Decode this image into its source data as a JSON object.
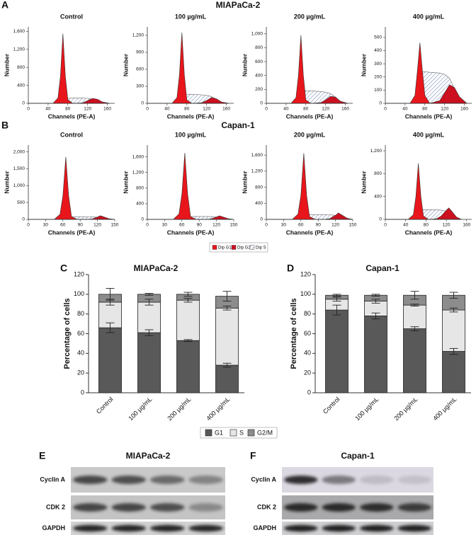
{
  "figure": {
    "rows": [
      {
        "label": "A",
        "title": "MIAPaCa-2"
      },
      {
        "label": "B",
        "title": "Capan-1"
      }
    ]
  },
  "chart_data": [
    {
      "type": "area",
      "title": "Control",
      "ylabel": "Number",
      "xlabel": "Channels (PE-A)",
      "x": [
        0,
        50,
        60,
        65,
        70,
        75,
        80,
        90,
        110,
        120,
        130,
        140,
        150,
        165
      ],
      "xlim": [
        0,
        175
      ],
      "xticks": [
        0,
        40,
        80,
        120,
        160
      ],
      "ylim": [
        0,
        1700
      ],
      "yticks": [
        0,
        400,
        800,
        {
          "value": 1200,
          "label": "1,200"
        },
        {
          "value": 1600,
          "label": "1,600"
        }
      ],
      "series": [
        {
          "name": "Dip G1",
          "color": "#e8161b",
          "values": [
            0,
            0,
            120,
            600,
            1550,
            600,
            80,
            0,
            0,
            0,
            0,
            0,
            0,
            0
          ]
        },
        {
          "name": "Dip G2",
          "color": "#cc1020",
          "values": [
            0,
            0,
            0,
            0,
            0,
            0,
            0,
            0,
            10,
            60,
            110,
            90,
            30,
            0
          ]
        },
        {
          "name": "Dip S",
          "color": "#7d8fb8",
          "values": [
            0,
            0,
            20,
            60,
            90,
            100,
            110,
            120,
            120,
            110,
            90,
            50,
            10,
            0
          ]
        }
      ]
    },
    {
      "type": "area",
      "title": "100 µg/mL",
      "ylabel": "Number",
      "xlabel": "Channels (PE-A)",
      "x": [
        0,
        50,
        60,
        65,
        70,
        75,
        80,
        90,
        110,
        120,
        130,
        140,
        150,
        165
      ],
      "xlim": [
        0,
        175
      ],
      "xticks": [
        0,
        40,
        80,
        120,
        160
      ],
      "ylim": [
        0,
        1350
      ],
      "yticks": [
        0,
        300,
        600,
        900,
        {
          "value": 1200,
          "label": "1,200"
        }
      ],
      "series": [
        {
          "name": "Dip G1",
          "color": "#e8161b",
          "values": [
            0,
            0,
            100,
            500,
            1250,
            500,
            60,
            0,
            0,
            0,
            0,
            0,
            0,
            0
          ]
        },
        {
          "name": "Dip G2",
          "color": "#cc1020",
          "values": [
            0,
            0,
            0,
            0,
            0,
            0,
            0,
            0,
            10,
            50,
            100,
            80,
            25,
            0
          ]
        },
        {
          "name": "Dip S",
          "color": "#7d8fb8",
          "values": [
            0,
            0,
            20,
            80,
            130,
            150,
            160,
            160,
            150,
            140,
            120,
            70,
            15,
            0
          ]
        }
      ]
    },
    {
      "type": "area",
      "title": "200 µg/mL",
      "ylabel": "Number",
      "xlabel": "Channels (PE-A)",
      "x": [
        0,
        50,
        60,
        65,
        70,
        75,
        80,
        90,
        110,
        120,
        130,
        140,
        150,
        165
      ],
      "xlim": [
        0,
        175
      ],
      "xticks": [
        0,
        40,
        80,
        120,
        160
      ],
      "ylim": [
        0,
        1100
      ],
      "yticks": [
        0,
        200,
        400,
        600,
        800,
        {
          "value": 1000,
          "label": "1,000"
        }
      ],
      "series": [
        {
          "name": "Dip G1",
          "color": "#e8161b",
          "values": [
            0,
            0,
            80,
            400,
            980,
            400,
            50,
            0,
            0,
            0,
            0,
            0,
            0,
            0
          ]
        },
        {
          "name": "Dip G2",
          "color": "#cc1020",
          "values": [
            0,
            0,
            0,
            0,
            0,
            0,
            0,
            0,
            10,
            50,
            100,
            90,
            30,
            0
          ]
        },
        {
          "name": "Dip S",
          "color": "#7d8fb8",
          "values": [
            0,
            0,
            20,
            90,
            150,
            170,
            180,
            180,
            170,
            160,
            140,
            90,
            20,
            0
          ]
        }
      ]
    },
    {
      "type": "area",
      "title": "400 µg/mL",
      "ylabel": "Number",
      "xlabel": "Channels (PE-A)",
      "x": [
        0,
        50,
        60,
        65,
        70,
        75,
        80,
        90,
        110,
        120,
        130,
        140,
        150,
        165
      ],
      "xlim": [
        0,
        175
      ],
      "xticks": [
        0,
        40,
        80,
        120,
        160
      ],
      "ylim": [
        0,
        580
      ],
      "yticks": [
        0,
        100,
        200,
        300,
        400,
        500
      ],
      "series": [
        {
          "name": "Dip G1",
          "color": "#e8161b",
          "values": [
            0,
            0,
            60,
            250,
            460,
            250,
            60,
            0,
            0,
            0,
            0,
            0,
            0,
            0
          ]
        },
        {
          "name": "Dip G2",
          "color": "#cc1020",
          "values": [
            0,
            0,
            0,
            0,
            0,
            0,
            0,
            0,
            20,
            80,
            140,
            120,
            50,
            0
          ]
        },
        {
          "name": "Dip S",
          "color": "#7d8fb8",
          "values": [
            0,
            0,
            40,
            150,
            230,
            240,
            240,
            235,
            230,
            220,
            190,
            110,
            30,
            0
          ]
        }
      ]
    },
    {
      "type": "area",
      "title": "Control",
      "ylabel": "Number",
      "xlabel": "Channels (PE-A)",
      "x": [
        0,
        45,
        55,
        60,
        65,
        70,
        75,
        85,
        100,
        110,
        120,
        125,
        130,
        140,
        150
      ],
      "xlim": [
        0,
        150
      ],
      "xticks": [
        0,
        30,
        60,
        90,
        120,
        150
      ],
      "ylim": [
        0,
        2200
      ],
      "yticks": [
        0,
        500,
        {
          "value": 1000,
          "label": "1,000"
        },
        {
          "value": 1500,
          "label": "1,500"
        },
        {
          "value": 2000,
          "label": "2,000"
        }
      ],
      "series": [
        {
          "name": "Dip G1",
          "color": "#e8161b",
          "values": [
            0,
            0,
            150,
            700,
            1850,
            700,
            80,
            0,
            0,
            0,
            0,
            0,
            0,
            0,
            0
          ]
        },
        {
          "name": "Dip G2",
          "color": "#cc1020",
          "values": [
            0,
            0,
            0,
            0,
            0,
            0,
            0,
            0,
            0,
            10,
            70,
            110,
            80,
            20,
            0
          ]
        },
        {
          "name": "Dip S",
          "color": "#7d8fb8",
          "values": [
            0,
            0,
            20,
            50,
            70,
            80,
            80,
            80,
            80,
            75,
            60,
            40,
            20,
            5,
            0
          ]
        }
      ]
    },
    {
      "type": "area",
      "title": "100 µg/mL",
      "ylabel": "Number",
      "xlabel": "Channels (PE-A)",
      "x": [
        0,
        45,
        55,
        60,
        65,
        70,
        75,
        85,
        100,
        110,
        120,
        125,
        130,
        140,
        150
      ],
      "xlim": [
        0,
        150
      ],
      "xticks": [
        0,
        30,
        60,
        90,
        120,
        150
      ],
      "ylim": [
        0,
        1900
      ],
      "yticks": [
        0,
        400,
        800,
        {
          "value": 1200,
          "label": "1,200"
        },
        {
          "value": 1600,
          "label": "1,600"
        }
      ],
      "series": [
        {
          "name": "Dip G1",
          "color": "#e8161b",
          "values": [
            0,
            0,
            140,
            650,
            1700,
            650,
            70,
            0,
            0,
            0,
            0,
            0,
            0,
            0,
            0
          ]
        },
        {
          "name": "Dip G2",
          "color": "#cc1020",
          "values": [
            0,
            0,
            0,
            0,
            0,
            0,
            0,
            0,
            0,
            10,
            60,
            90,
            70,
            20,
            0
          ]
        },
        {
          "name": "Dip S",
          "color": "#7d8fb8",
          "values": [
            0,
            0,
            20,
            50,
            70,
            75,
            75,
            75,
            75,
            70,
            60,
            40,
            20,
            5,
            0
          ]
        }
      ]
    },
    {
      "type": "area",
      "title": "200 µg/mL",
      "ylabel": "Number",
      "xlabel": "Channels (PE-A)",
      "x": [
        0,
        45,
        55,
        60,
        65,
        70,
        75,
        85,
        100,
        110,
        120,
        125,
        130,
        140,
        150
      ],
      "xlim": [
        0,
        150
      ],
      "xticks": [
        0,
        30,
        60,
        90,
        120,
        150
      ],
      "ylim": [
        0,
        1850
      ],
      "yticks": [
        0,
        400,
        800,
        {
          "value": 1200,
          "label": "1,200"
        },
        {
          "value": 1600,
          "label": "1,600"
        }
      ],
      "series": [
        {
          "name": "Dip G1",
          "color": "#e8161b",
          "values": [
            0,
            0,
            130,
            600,
            1650,
            600,
            70,
            0,
            0,
            0,
            0,
            0,
            0,
            0,
            0
          ]
        },
        {
          "name": "Dip G2",
          "color": "#cc1020",
          "values": [
            0,
            0,
            0,
            0,
            0,
            0,
            0,
            0,
            0,
            20,
            100,
            160,
            120,
            30,
            0
          ]
        },
        {
          "name": "Dip S",
          "color": "#7d8fb8",
          "values": [
            0,
            0,
            30,
            80,
            110,
            120,
            120,
            120,
            120,
            115,
            100,
            70,
            30,
            5,
            0
          ]
        }
      ]
    },
    {
      "type": "area",
      "title": "400 µg/mL",
      "ylabel": "Number",
      "xlabel": "Channels (PE-A)",
      "x": [
        0,
        45,
        55,
        60,
        65,
        70,
        75,
        85,
        100,
        110,
        120,
        125,
        130,
        140,
        150
      ],
      "xlim": [
        0,
        170
      ],
      "xticks": [
        0,
        40,
        80,
        120,
        160
      ],
      "ylim": [
        0,
        1300
      ],
      "yticks": [
        0,
        400,
        800,
        {
          "value": 1200,
          "label": "1,200"
        }
      ],
      "series": [
        {
          "name": "Dip G1",
          "color": "#e8161b",
          "values": [
            0,
            0,
            80,
            400,
            980,
            400,
            60,
            0,
            0,
            0,
            0,
            0,
            0,
            0,
            0
          ]
        },
        {
          "name": "Dip G2",
          "color": "#cc1020",
          "values": [
            0,
            0,
            0,
            0,
            0,
            0,
            0,
            0,
            10,
            60,
            160,
            200,
            150,
            40,
            0
          ]
        },
        {
          "name": "Dip S",
          "color": "#7d8fb8",
          "values": [
            0,
            0,
            40,
            120,
            160,
            170,
            170,
            170,
            170,
            160,
            140,
            100,
            40,
            10,
            0
          ]
        }
      ]
    },
    {
      "type": "stacked_bar",
      "panel": "C",
      "title": "MIAPaCa-2",
      "ylabel": "Percentage of cells",
      "categories": [
        "Control",
        "100 µg/mL",
        "200 µg/mL",
        "400 µg/mL"
      ],
      "ylim": [
        0,
        120
      ],
      "yticks": [
        0,
        20,
        40,
        60,
        80,
        100,
        120
      ],
      "series": [
        {
          "name": "G1",
          "color": "#595959",
          "values": [
            66,
            61,
            53,
            28
          ],
          "errors": [
            5,
            3,
            1,
            2
          ]
        },
        {
          "name": "S",
          "color": "#e6e6e6",
          "values": [
            26,
            31,
            41,
            58
          ],
          "errors": [
            3,
            3,
            2,
            2
          ]
        },
        {
          "name": "G2/M",
          "color": "#8c8c8c",
          "values": [
            8,
            8,
            6,
            12
          ],
          "errors": [
            6,
            1,
            2,
            5
          ]
        }
      ]
    },
    {
      "type": "stacked_bar",
      "panel": "D",
      "title": "Capan-1",
      "ylabel": "Percentage of cells",
      "categories": [
        "Control",
        "100 µg/mL",
        "200 µg/mL",
        "400 µg/mL"
      ],
      "ylim": [
        0,
        120
      ],
      "yticks": [
        0,
        20,
        40,
        60,
        80,
        100,
        120
      ],
      "series": [
        {
          "name": "G1",
          "color": "#595959",
          "values": [
            84,
            78,
            65,
            42
          ],
          "errors": [
            5,
            3,
            2,
            3
          ]
        },
        {
          "name": "S",
          "color": "#e6e6e6",
          "values": [
            11,
            15,
            24,
            42
          ],
          "errors": [
            2,
            2,
            1,
            2
          ]
        },
        {
          "name": "G2/M",
          "color": "#8c8c8c",
          "values": [
            4,
            6,
            10,
            15
          ],
          "errors": [
            1,
            1,
            4,
            3
          ]
        }
      ]
    }
  ],
  "blots": [
    {
      "label": "E",
      "title": "MIAPaCa-2",
      "rows": [
        "Cyclin A",
        "CDK 2",
        "GAPDH"
      ]
    },
    {
      "label": "F",
      "title": "Capan-1",
      "rows": [
        "Cyclin A",
        "CDK 2",
        "GAPDH"
      ]
    }
  ]
}
